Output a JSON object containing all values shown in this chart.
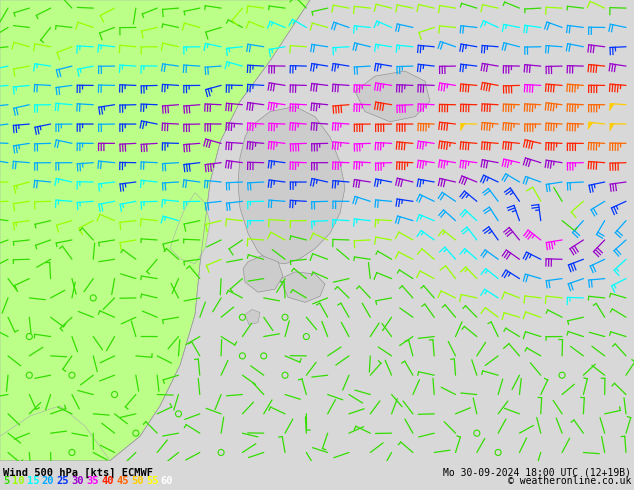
{
  "title_left": "Wind 500 hPa [kts] ECMWF",
  "title_right": "Mo 30-09-2024 18:00 UTC (12+19B)",
  "copyright": "© weatheronline.co.uk",
  "legend_values": [
    5,
    10,
    15,
    20,
    25,
    30,
    35,
    40,
    45,
    50,
    55,
    60
  ],
  "legend_colors": [
    "#33dd00",
    "#99ff00",
    "#00ffff",
    "#00aaff",
    "#0033ff",
    "#9900cc",
    "#ff00ff",
    "#ff2200",
    "#ff6600",
    "#ffcc00",
    "#ffff00",
    "#ffffff"
  ],
  "bg_color": "#d8d8d8",
  "land_green": "#bbff88",
  "japan_color": "#cccccc",
  "sea_color": "#d0d0d0",
  "figsize": [
    6.34,
    4.9
  ],
  "dpi": 100,
  "speed_thresholds": [
    5,
    10,
    15,
    20,
    25,
    30,
    35,
    40,
    45,
    50,
    55,
    60
  ],
  "speed_colors": [
    "#33dd00",
    "#99ff00",
    "#00ffff",
    "#00aaff",
    "#0033ff",
    "#9900cc",
    "#ff00ff",
    "#ff2200",
    "#ff6600",
    "#ffcc00",
    "#ffff00",
    "#ffffff"
  ]
}
